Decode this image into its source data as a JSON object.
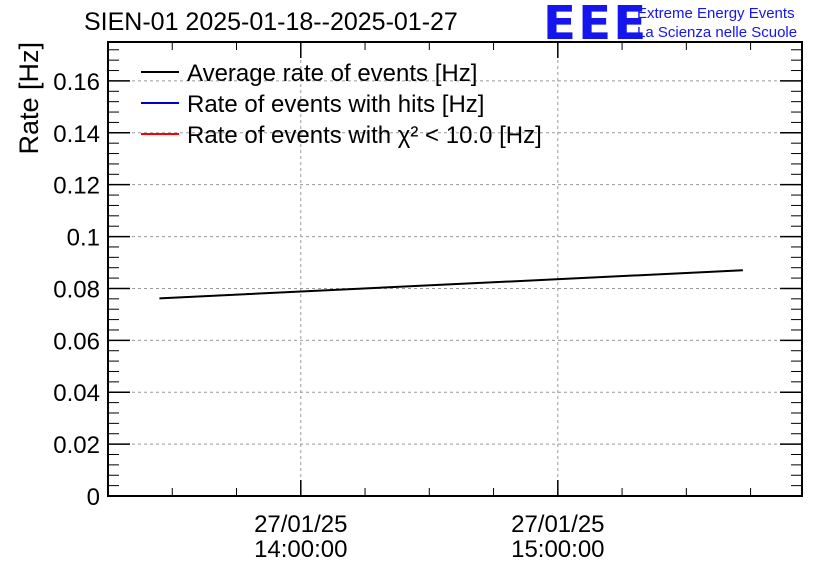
{
  "header": {
    "title": "SIEN-01 2025-01-18--2025-01-27",
    "logo_text": "EEE",
    "logo_line1": "Extreme Energy Events",
    "logo_line2": "La Scienza nelle Scuole",
    "logo_color": "#1515ee"
  },
  "chart_data": {
    "type": "line",
    "title": "SIEN-01 2025-01-18--2025-01-27",
    "xlabel": "",
    "ylabel": "Rate [Hz]",
    "ylim": [
      0,
      0.175
    ],
    "yticks": [
      0,
      0.02,
      0.04,
      0.06,
      0.08,
      0.1,
      0.12,
      0.14,
      0.16
    ],
    "ytick_labels": [
      "0",
      "0.02",
      "0.04",
      "0.06",
      "0.08",
      "0.1",
      "0.12",
      "0.14",
      "0.16"
    ],
    "xlim_hours": [
      13.25,
      15.95
    ],
    "xticks": [
      {
        "hours": 14.0,
        "date": "27/01/25",
        "time": "14:00:00"
      },
      {
        "hours": 15.0,
        "date": "27/01/25",
        "time": "15:00:00"
      }
    ],
    "grid": true,
    "legend_position": "top-left",
    "series": [
      {
        "name": "Average rate of events [Hz]",
        "color": "#000000",
        "x_hours": [
          13.45,
          15.72
        ],
        "values": [
          0.0762,
          0.087
        ]
      },
      {
        "name": "Rate of events with hits [Hz]",
        "color": "#0000cc",
        "x_hours": [],
        "values": []
      },
      {
        "name": "Rate of events with χ² < 10.0 [Hz]",
        "color": "#ff0000",
        "x_hours": [
          13.44,
          13.5
        ],
        "values": [
          0.0,
          0.0
        ]
      }
    ]
  }
}
